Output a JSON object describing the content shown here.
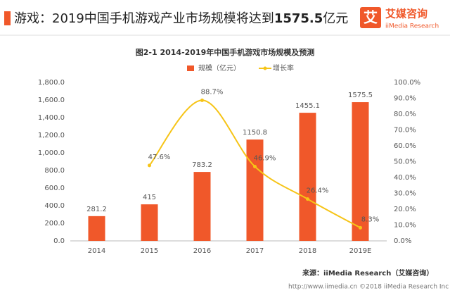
{
  "header": {
    "title_prefix": "游戏：2019中国手机游戏产业市场规模将达到",
    "title_highlight": "1575.5",
    "title_suffix": "亿元",
    "logo_icon": "艾",
    "logo_name": "艾媒咨询",
    "logo_sub": "iiMedia Research"
  },
  "chart_data": {
    "type": "bar_line",
    "title": "图2-1 2014-2019年中国手机游戏市场规模及预测",
    "categories": [
      "2014",
      "2015",
      "2016",
      "2017",
      "2018",
      "2019E"
    ],
    "series": [
      {
        "name": "规模（亿元）",
        "type": "bar",
        "color": "#f0582a",
        "values": [
          281.2,
          415,
          783.2,
          1150.8,
          1455.1,
          1575.5
        ]
      },
      {
        "name": "增长率",
        "type": "line",
        "axis": "y2",
        "color": "#f6c417",
        "values": [
          null,
          47.6,
          88.7,
          46.9,
          26.4,
          8.3
        ],
        "value_labels": [
          null,
          "47.6%",
          "88.7%",
          "46.9%",
          "26.4%",
          "8.3%"
        ]
      }
    ],
    "ylim": [
      0,
      1800
    ],
    "yticks": [
      {
        "value": 0,
        "label": "0.0"
      },
      {
        "value": 200,
        "label": "200.0"
      },
      {
        "value": 400,
        "label": "400.0"
      },
      {
        "value": 600,
        "label": "600.0"
      },
      {
        "value": 800,
        "label": "800.0"
      },
      {
        "value": 1000,
        "label": "1,000.0"
      },
      {
        "value": 1200,
        "label": "1,200.0"
      },
      {
        "value": 1400,
        "label": "1,400.0"
      },
      {
        "value": 1600,
        "label": "1,600.0"
      },
      {
        "value": 1800,
        "label": "1,800.0"
      }
    ],
    "y2lim": [
      0,
      100
    ],
    "y2ticks": [
      {
        "value": 0,
        "label": "0.0%"
      },
      {
        "value": 10,
        "label": "10.0%"
      },
      {
        "value": 20,
        "label": "20.0%"
      },
      {
        "value": 30,
        "label": "30.0%"
      },
      {
        "value": 40,
        "label": "40.0%"
      },
      {
        "value": 50,
        "label": "50.0%"
      },
      {
        "value": 60,
        "label": "60.0%"
      },
      {
        "value": 70,
        "label": "70.0%"
      },
      {
        "value": 80,
        "label": "80.0%"
      },
      {
        "value": 90,
        "label": "90.0%"
      },
      {
        "value": 100,
        "label": "100.0%"
      }
    ],
    "grid": false,
    "legend": "top",
    "source": "来源：iiMedia Research（艾媒咨询）"
  },
  "footer": "http://www.iimedia.cn   ©2018 iiMedia Research Inc"
}
